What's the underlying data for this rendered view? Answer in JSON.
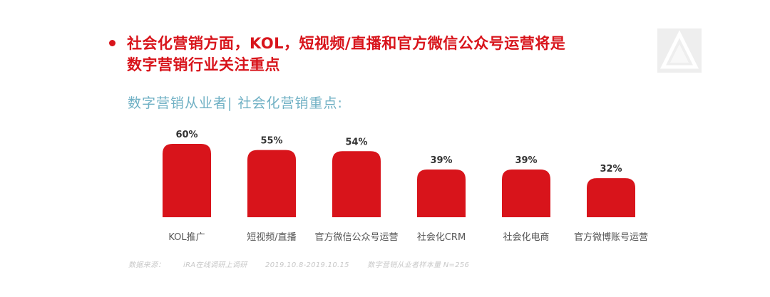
{
  "headline": {
    "line1": "社会化营销方面，KOL，短视频/直播和官方微信公众号运营将是",
    "line2": "数字营销行业关注重点"
  },
  "colors": {
    "accent": "#d8141b",
    "subtitle": "#6fb0c4"
  },
  "logo_icon": "triangle-logo-icon",
  "chart_data": {
    "type": "bar",
    "title": "数字营销从业者| 社会化营销重点:",
    "categories": [
      "KOL推广",
      "短视频/直播",
      "官方微信公众号运营",
      "社会化CRM",
      "社会化电商",
      "官方微博账号运营"
    ],
    "values": [
      60,
      55,
      54,
      39,
      39,
      32
    ],
    "data_labels": [
      "60%",
      "55%",
      "54%",
      "39%",
      "39%",
      "32%"
    ],
    "ylim": [
      0,
      60
    ],
    "grid": false,
    "legend": "none",
    "bar_color": "#d8141b"
  },
  "footnote": {
    "source": "数据来源：",
    "method": "iRA在线调研上调研",
    "period": "2019.10.8-2019.10.15",
    "sample": "数字营销从业者样本量 N=256"
  }
}
